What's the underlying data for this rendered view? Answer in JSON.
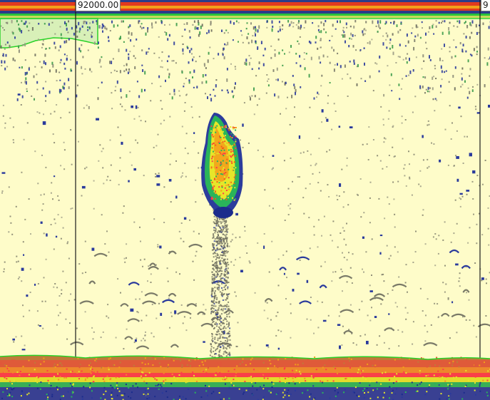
{
  "echogram": {
    "interval_labels": [
      "92000.00",
      "9"
    ],
    "colors": {
      "background": "#fefcc9",
      "surface_line": "#28d228",
      "interval_line": "#1a1a1a",
      "palette": [
        "#8c8c7a",
        "#7a7a6a",
        "#2c3c9c",
        "#1c2c8c",
        "#5aa06a",
        "#2ab45a",
        "#e6e62a",
        "#f2a81c",
        "#f25a1c",
        "#ff3a4a"
      ],
      "top_band": [
        "#2a3c8a",
        "#e23a1e",
        "#f2a01a",
        "#2ac43a"
      ]
    }
  }
}
